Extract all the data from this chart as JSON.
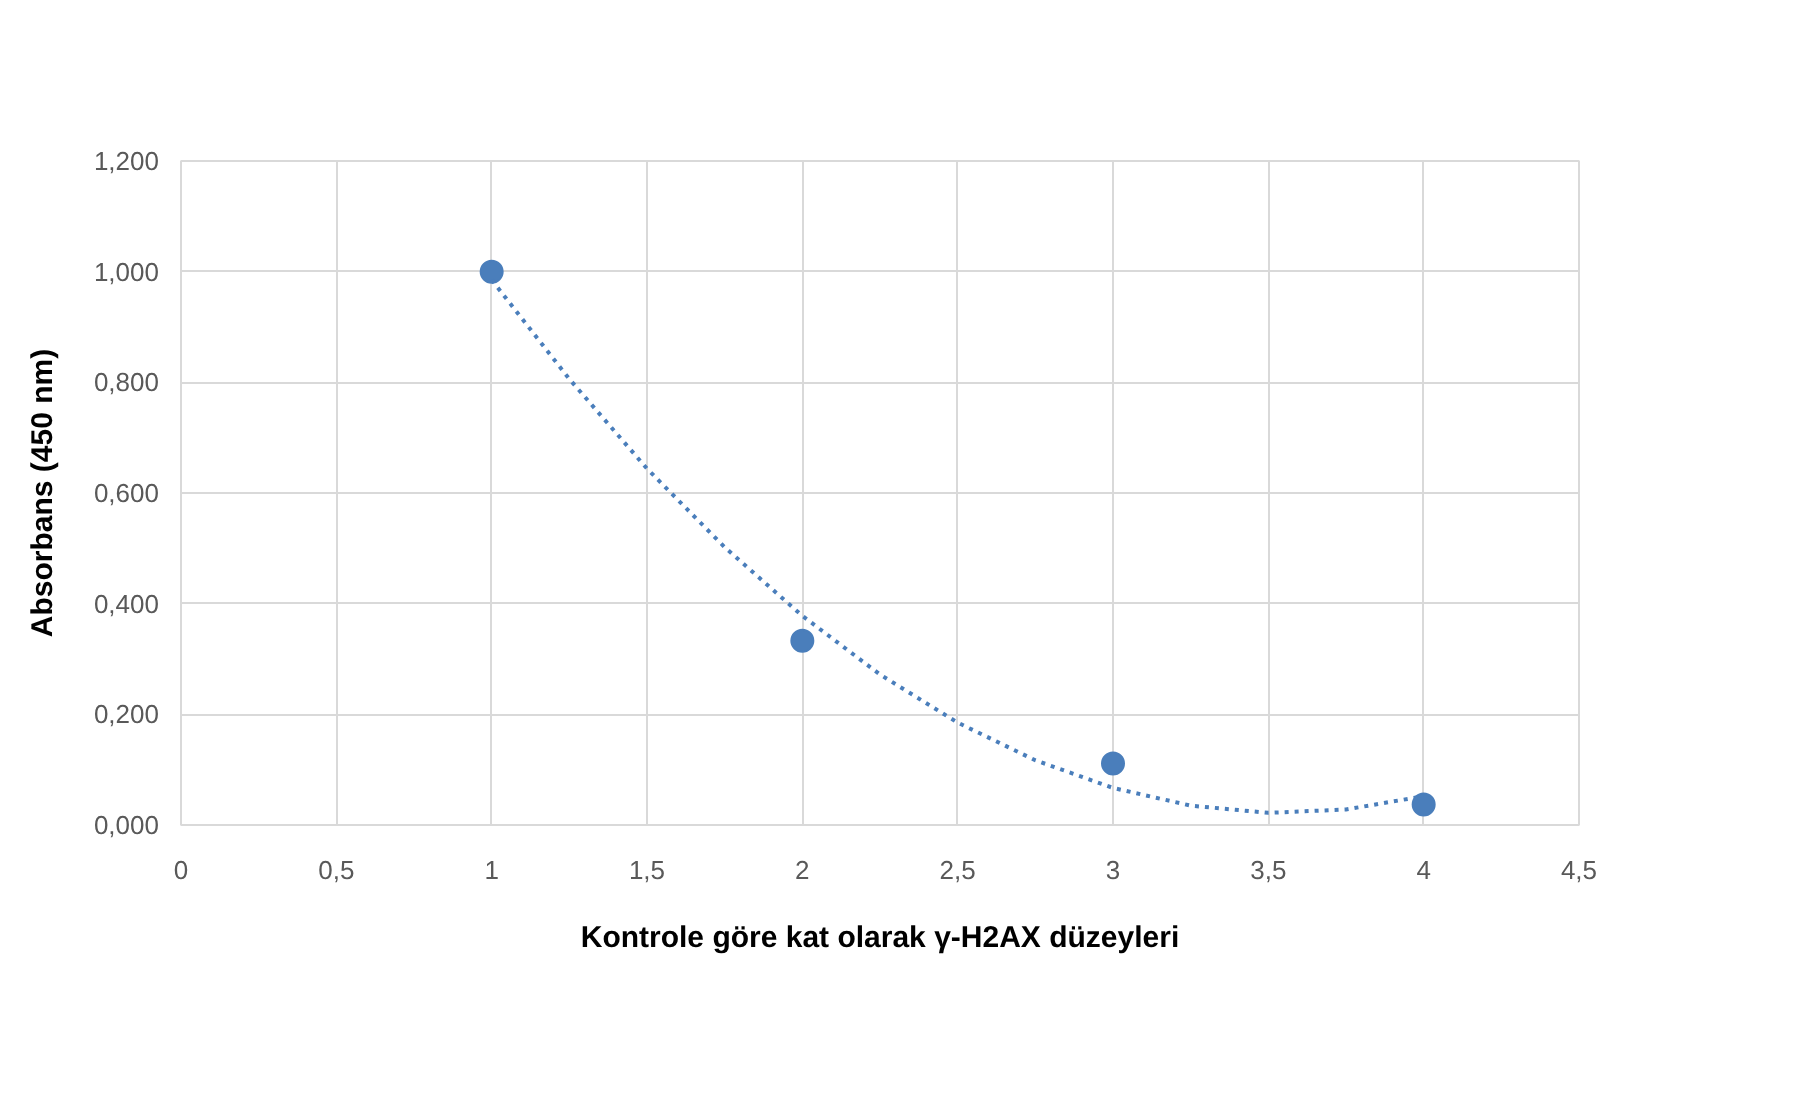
{
  "chart_data": {
    "type": "scatter",
    "xlabel": "Kontrole göre kat olarak γ-H2AX düzeyleri",
    "ylabel": "Absorbans (450 nm)",
    "x": [
      1,
      2,
      3,
      4
    ],
    "series": [
      {
        "color": "#4a7ebb",
        "values": [
          1.0,
          0.333,
          0.111,
          0.037
        ],
        "marker": "circle"
      },
      {
        "type": "line",
        "color": "#4a7ebb",
        "line_style": "dotted",
        "marker": "none",
        "x": [
          1,
          1.25,
          1.5,
          1.75,
          2,
          2.25,
          2.5,
          2.75,
          3,
          3.25,
          3.5,
          3.75,
          4
        ],
        "values": [
          0.985,
          0.806,
          0.644,
          0.502,
          0.378,
          0.272,
          0.185,
          0.117,
          0.067,
          0.035,
          0.022,
          0.028,
          0.052
        ]
      }
    ],
    "xlim": [
      0,
      4.5
    ],
    "ylim": [
      0,
      1.2
    ],
    "xticks": [
      0,
      {
        "value": 0.5,
        "label": "0,5"
      },
      1,
      {
        "value": 1.5,
        "label": "1,5"
      },
      2,
      {
        "value": 2.5,
        "label": "2,5"
      },
      3,
      {
        "value": 3.5,
        "label": "3,5"
      },
      4,
      {
        "value": 4.5,
        "label": "4,5"
      }
    ],
    "yticks": [
      {
        "value": 0,
        "label": "0,000"
      },
      {
        "value": 0.2,
        "label": "0,200"
      },
      {
        "value": 0.4,
        "label": "0,400"
      },
      {
        "value": 0.6,
        "label": "0,600"
      },
      {
        "value": 0.8,
        "label": "0,800"
      },
      {
        "value": 1.0,
        "label": "1,000"
      },
      {
        "value": 1.2,
        "label": "1,200"
      }
    ],
    "grid": true
  }
}
